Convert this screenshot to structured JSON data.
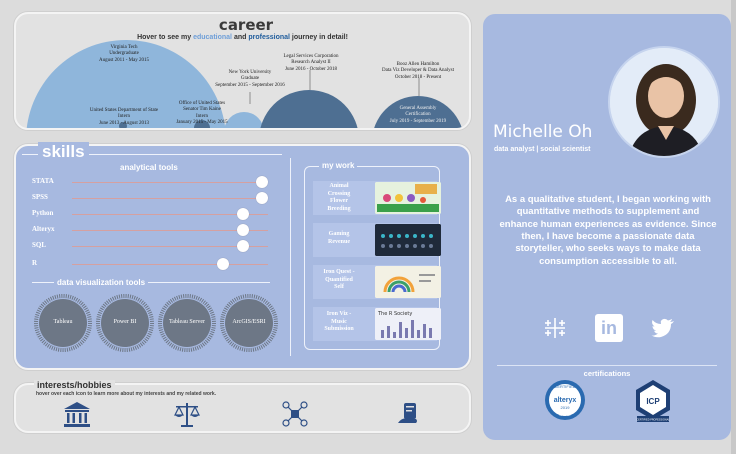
{
  "career": {
    "title": "career",
    "hover_pre": "Hover to see my ",
    "hover_hl1": "educational",
    "hover_mid": " and ",
    "hover_hl2": "professional",
    "hover_post": " journey in detail!",
    "entries": [
      {
        "l1": "Virginia Tech",
        "l2": "Undergraduate",
        "l3": "August 2011 - May 2015"
      },
      {
        "l1": "United States Department of State",
        "l2": "Intern",
        "l3": "June 2013 - August 2013"
      },
      {
        "l1": "Office of United States",
        "l2": "Senator Tim Kaine",
        "l3": "Intern",
        "l4": "January 2015 - May 2015"
      },
      {
        "l1": "New York University",
        "l2": "Graduate",
        "l3": "September 2015 - September 2016"
      },
      {
        "l1": "Legal Services Corporation",
        "l2": "Research Analyst II",
        "l3": "June 2016 - October 2018"
      },
      {
        "l1": "Booz Allen Hamilton",
        "l2": "Data Viz Developer & Data Analyst",
        "l3": "October 2018 - Present"
      },
      {
        "l1": "General Assembly",
        "l2": "Certification",
        "l3": "July 2019 - September 2019"
      }
    ],
    "colors": {
      "light": "#8fb6db",
      "dark": "#4e6f92",
      "bg": "#e2e2e2"
    }
  },
  "skills": {
    "title": "skills",
    "analytical_title": "analytical tools",
    "tools": [
      {
        "name": "STATA",
        "level": 0.97
      },
      {
        "name": "SPSS",
        "level": 0.97
      },
      {
        "name": "Python",
        "level": 0.87
      },
      {
        "name": "Alteryx",
        "level": 0.87
      },
      {
        "name": "SQL",
        "level": 0.87
      },
      {
        "name": "R",
        "level": 0.77
      }
    ],
    "viz_title": "data visualization tools",
    "viz_tools": [
      "Tableau",
      "Power BI",
      "Tableau Server",
      "ArcGIS/ESRI"
    ],
    "mywork_title": "my work",
    "works": [
      {
        "l1": "Animal",
        "l2": "Crossing",
        "l3": "Flower",
        "l4": "Breeding"
      },
      {
        "l1": "Gaming",
        "l2": "Revenue"
      },
      {
        "l1": "Iron Quest -",
        "l2": "Quantified",
        "l3": "Self"
      },
      {
        "l1": "Iron Viz -",
        "l2": "Music",
        "l3": "Submission"
      }
    ],
    "thumb4_title": "The R Society"
  },
  "interests": {
    "title": "interests/hobbies",
    "subtitle": "hover over each icon to learn more about my interests and my related work.",
    "icons": [
      "museum-icon",
      "scales-of-justice-icon",
      "puzzle-network-icon",
      "book-hand-icon"
    ]
  },
  "profile": {
    "name": "Michelle Oh",
    "roles": "data analyst  |  social scientist",
    "bio": "As a qualitative student, I began working with quantitative methods to supplement and enhance human experiences as evidence. Since then, I have become a passionate data storyteller, who seeks ways to make data consumption accessible to all.",
    "social": [
      "tableau-icon",
      "linkedin-icon",
      "twitter-icon"
    ],
    "linkedin_text": "in",
    "cert_title": "certifications",
    "badges": [
      {
        "name": "alteryx-badge",
        "top": "CERTIFIED",
        "main": "alteryx",
        "sub": "2019",
        "bottom": "CORE"
      },
      {
        "name": "icp-badge",
        "top": "ICP",
        "sub": "CERTIFIED PROFESSIONAL"
      }
    ]
  }
}
